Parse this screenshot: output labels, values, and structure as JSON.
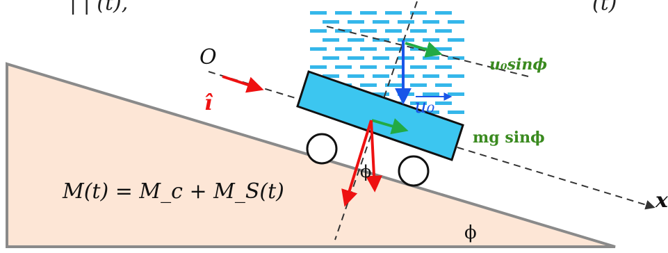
{
  "top_text": {
    "left": "| |       (t),",
    "right": "(t)"
  },
  "labels": {
    "origin": "O",
    "unit_vector": "î",
    "velocity_vector": "u₀",
    "u0_component": "u₀sinϕ",
    "gravity_component": "mg sinϕ",
    "mass_equation": "M(t) = M_c + M_S(t)",
    "axis_x": "x",
    "angle_cart": "ϕ",
    "angle_incline": "ϕ"
  },
  "colors": {
    "incline_fill": "#fde6d6",
    "incline_stroke": "#8a8a8a",
    "cart_fill": "#3cc6f0",
    "water_blue": "#35b7ea",
    "arrow_red": "#ee1111",
    "arrow_green": "#22aa44",
    "arrow_blue": "#1a55e8",
    "label_green": "#3a8a1f"
  }
}
